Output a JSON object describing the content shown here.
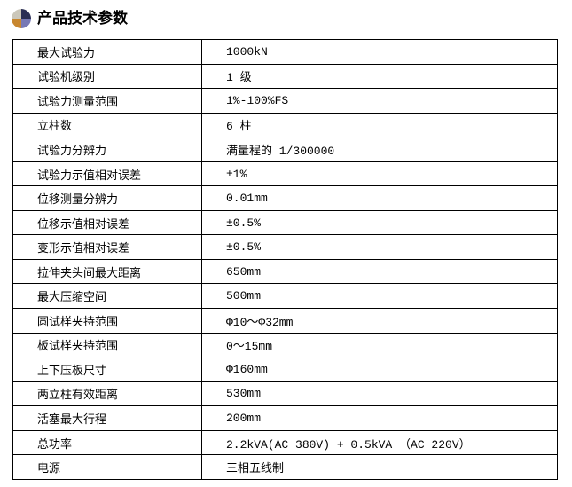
{
  "page": {
    "title": "产品技术参数"
  },
  "colors": {
    "background": "#ffffff",
    "text": "#000000",
    "table_border": "#000000",
    "icon_quadrant_top_right": "#2b2f55",
    "icon_quadrant_bottom_right": "#7779b5",
    "icon_quadrant_bottom_left": "#c8872f",
    "icon_quadrant_top_left": "#cbc7ba"
  },
  "table": {
    "rows": [
      {
        "param": "最大试验力",
        "value": "1000kN"
      },
      {
        "param": "试验机级别",
        "value": "1 级"
      },
      {
        "param": "试验力测量范围",
        "value": "1%-100%FS"
      },
      {
        "param": "立柱数",
        "value": "6 柱"
      },
      {
        "param": "试验力分辨力",
        "value": "满量程的 1/300000"
      },
      {
        "param": "试验力示值相对误差",
        "value": "±1%"
      },
      {
        "param": "位移测量分辨力",
        "value": "0.01mm"
      },
      {
        "param": "位移示值相对误差",
        "value": "±0.5%"
      },
      {
        "param": "变形示值相对误差",
        "value": "±0.5%"
      },
      {
        "param": "拉伸夹头间最大距离",
        "value": "650mm"
      },
      {
        "param": "最大压缩空间",
        "value": "500mm"
      },
      {
        "param": "圆试样夹持范围",
        "value": "Φ10～Φ32mm"
      },
      {
        "param": "板试样夹持范围",
        "value": "0～15mm"
      },
      {
        "param": "上下压板尺寸",
        "value": "Φ160mm"
      },
      {
        "param": "两立柱有效距离",
        "value": "530mm"
      },
      {
        "param": "活塞最大行程",
        "value": "200mm"
      },
      {
        "param": "总功率",
        "value": "2.2kVA(AC 380V) + 0.5kVA （AC 220V）"
      },
      {
        "param": "电源",
        "value": "三相五线制"
      }
    ]
  }
}
